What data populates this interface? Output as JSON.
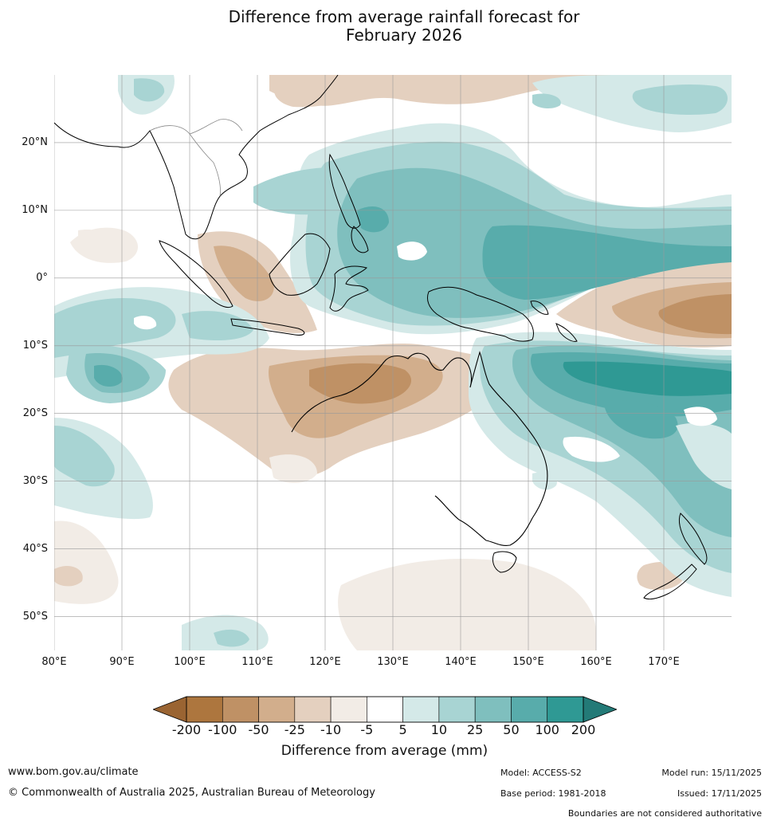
{
  "title": {
    "line1": "Difference from average rainfall forecast for",
    "line2": "February 2026"
  },
  "map": {
    "extent": {
      "lon_min": 80,
      "lon_max": 180,
      "lat_min": -55,
      "lat_max": 30
    },
    "lat_labels": [
      "20°N",
      "10°N",
      "0°",
      "10°S",
      "20°S",
      "30°S",
      "40°S",
      "50°S"
    ],
    "lat_values": [
      20,
      10,
      0,
      -10,
      -20,
      -30,
      -40,
      -50
    ],
    "lon_labels": [
      "80°E",
      "90°E",
      "100°E",
      "110°E",
      "120°E",
      "130°E",
      "140°E",
      "150°E",
      "160°E",
      "170°E"
    ],
    "lon_values": [
      80,
      90,
      100,
      110,
      120,
      130,
      140,
      150,
      160,
      170
    ]
  },
  "colorbar": {
    "ticks": [
      "-200",
      "-100",
      "-50",
      "-25",
      "-10",
      "-5",
      "5",
      "10",
      "25",
      "50",
      "100",
      "200"
    ],
    "colors": {
      "lt_neg200": "#9a6432",
      "neg200_neg100": "#ad763e",
      "neg100_neg50": "#bf9165",
      "neg50_neg25": "#d2ae8c",
      "neg25_neg10": "#e4d0bf",
      "neg10_neg5": "#f2ece6",
      "neg5_5": "#ffffff",
      "5_10": "#d4e9e8",
      "10_25": "#a8d4d3",
      "25_50": "#7fbfbe",
      "50_100": "#58acab",
      "100_200": "#2f9994",
      "gt_200": "#237a77"
    },
    "label": "Difference from average (mm)"
  },
  "footer": {
    "website": "www.bom.gov.au/climate",
    "copyright": "© Commonwealth of Australia 2025, Australian Bureau of Meteorology",
    "model": "Model: ACCESS-S2",
    "base_period": "Base period: 1981-2018",
    "model_run": "Model run: 15/11/2025",
    "issued": "Issued: 17/11/2025",
    "disclaimer": "Boundaries are not considered authoritative"
  }
}
